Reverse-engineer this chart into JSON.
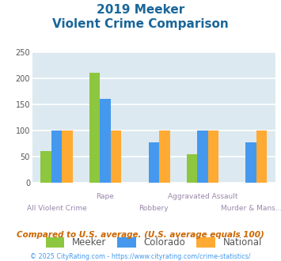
{
  "title_line1": "2019 Meeker",
  "title_line2": "Violent Crime Comparison",
  "cat_line1": [
    "",
    "Rape",
    "",
    "Aggravated Assault",
    ""
  ],
  "cat_line2": [
    "All Violent Crime",
    "",
    "Robbery",
    "",
    "Murder & Mans..."
  ],
  "meeker": [
    60,
    210,
    null,
    55,
    null
  ],
  "colorado": [
    100,
    160,
    78,
    100,
    77
  ],
  "national": [
    100,
    100,
    100,
    100,
    100
  ],
  "bar_colors": {
    "meeker": "#8dc63f",
    "colorado": "#4499ee",
    "national": "#ffaa33"
  },
  "ylim": [
    0,
    250
  ],
  "yticks": [
    0,
    50,
    100,
    150,
    200,
    250
  ],
  "background_color": "#dce9f0",
  "grid_color": "#ffffff",
  "title_color": "#1a6699",
  "axis_label_color": "#9988aa",
  "footer_text": "Compared to U.S. average. (U.S. average equals 100)",
  "footer_color": "#cc6600",
  "copyright_text": "© 2025 CityRating.com - https://www.cityrating.com/crime-statistics/",
  "copyright_color": "#4499ee",
  "bar_width": 0.22,
  "group_positions": [
    0,
    1,
    2,
    3,
    4
  ]
}
